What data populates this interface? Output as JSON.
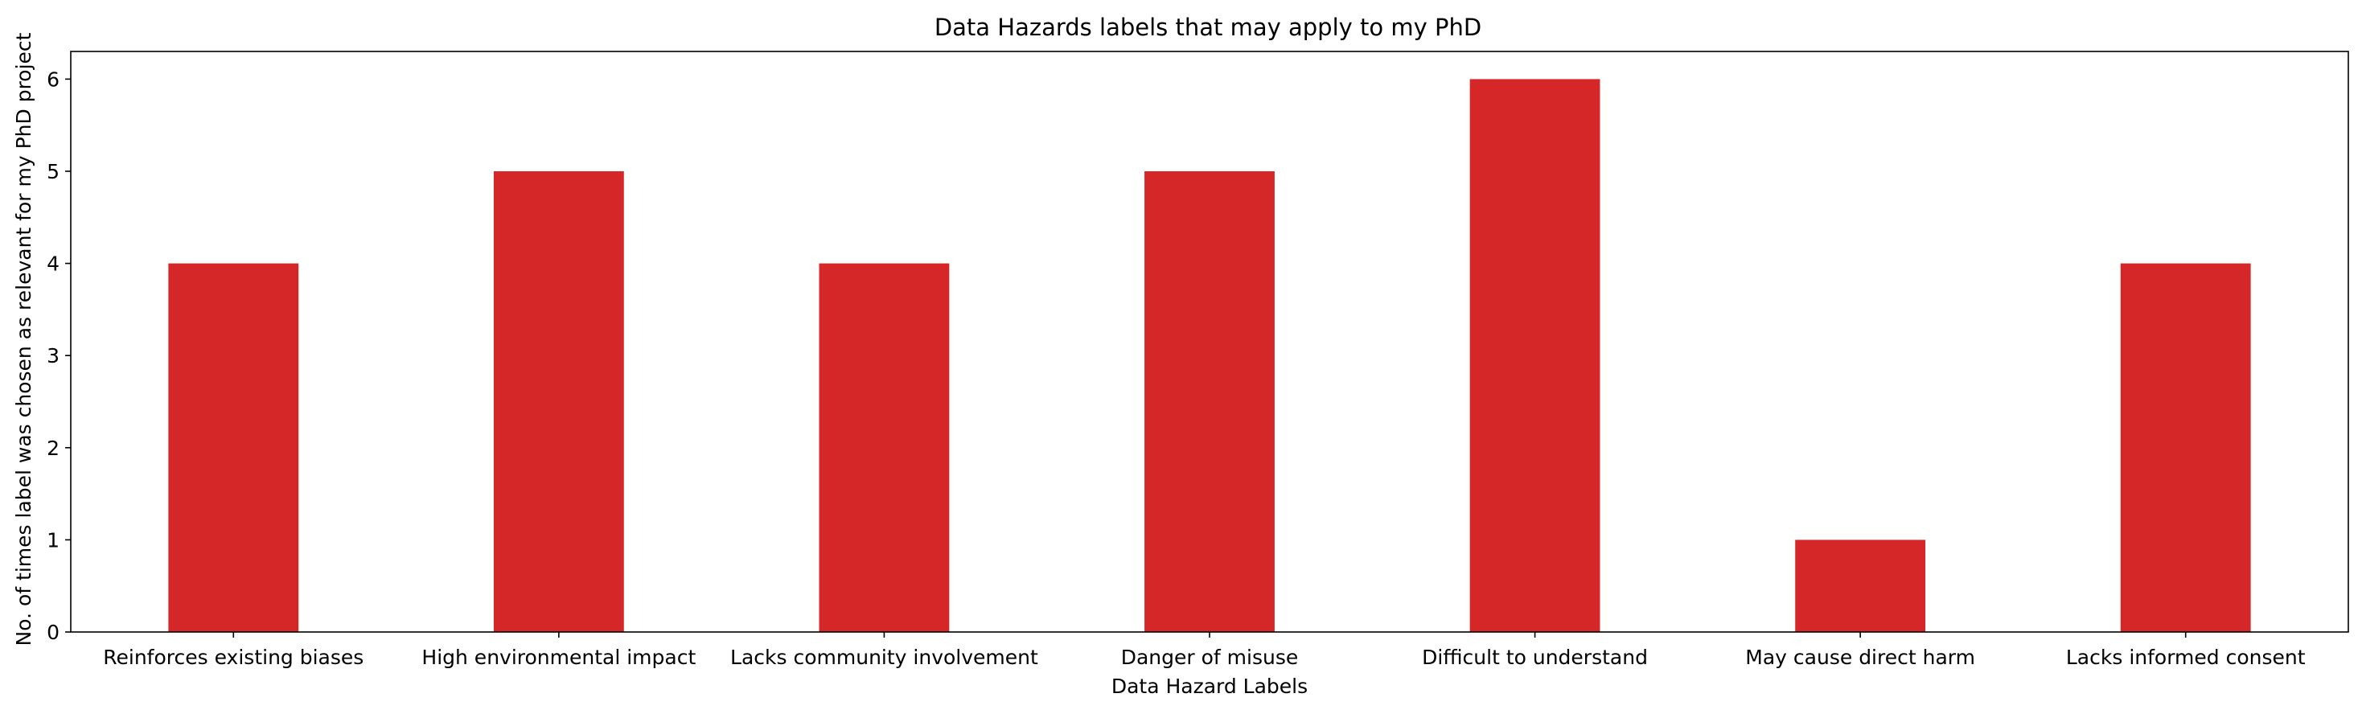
{
  "chart_data": {
    "type": "bar",
    "title": "Data Hazards labels that may apply to my PhD",
    "xlabel": "Data Hazard Labels",
    "ylabel": "No. of times label was chosen as relevant for my PhD project",
    "categories": [
      "Reinforces existing biases",
      "High environmental impact",
      "Lacks community involvement",
      "Danger of misuse",
      "Difficult to understand",
      "May cause direct harm",
      "Lacks informed consent"
    ],
    "values": [
      4,
      5,
      4,
      5,
      6,
      1,
      4
    ],
    "yticks": [
      "0",
      "1",
      "2",
      "3",
      "4",
      "5",
      "6"
    ],
    "ylim": [
      0,
      6.3
    ],
    "grid": false,
    "legend": "none",
    "bar_color": "#d62728"
  }
}
